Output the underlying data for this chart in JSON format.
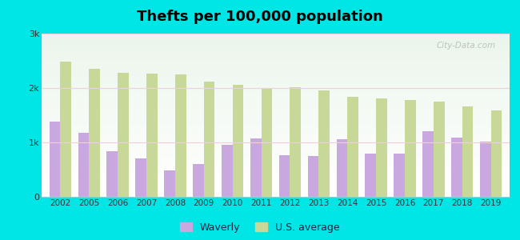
{
  "title": "Thefts per 100,000 population",
  "years": [
    2002,
    2005,
    2006,
    2007,
    2008,
    2009,
    2010,
    2011,
    2012,
    2013,
    2014,
    2015,
    2016,
    2017,
    2018,
    2019
  ],
  "waverly": [
    1380,
    1180,
    840,
    700,
    490,
    610,
    960,
    1080,
    770,
    750,
    1060,
    790,
    790,
    1200,
    1090,
    1020
  ],
  "us_average": [
    2490,
    2360,
    2280,
    2260,
    2250,
    2120,
    2060,
    2000,
    2010,
    1950,
    1840,
    1810,
    1775,
    1745,
    1655,
    1590
  ],
  "waverly_color": "#c9a8e0",
  "us_avg_color": "#c8d898",
  "plot_bg_top": "#f0faf0",
  "plot_bg_bottom": "#e0f5e8",
  "outer_background": "#00e5e5",
  "ylim": [
    0,
    3000
  ],
  "yticks": [
    0,
    1000,
    2000,
    3000
  ],
  "ytick_labels": [
    "0",
    "1k",
    "2k",
    "3k"
  ],
  "bar_width": 0.38,
  "legend_waverly": "Waverly",
  "legend_us": "U.S. average",
  "title_fontsize": 13,
  "watermark": "City-Data.com"
}
